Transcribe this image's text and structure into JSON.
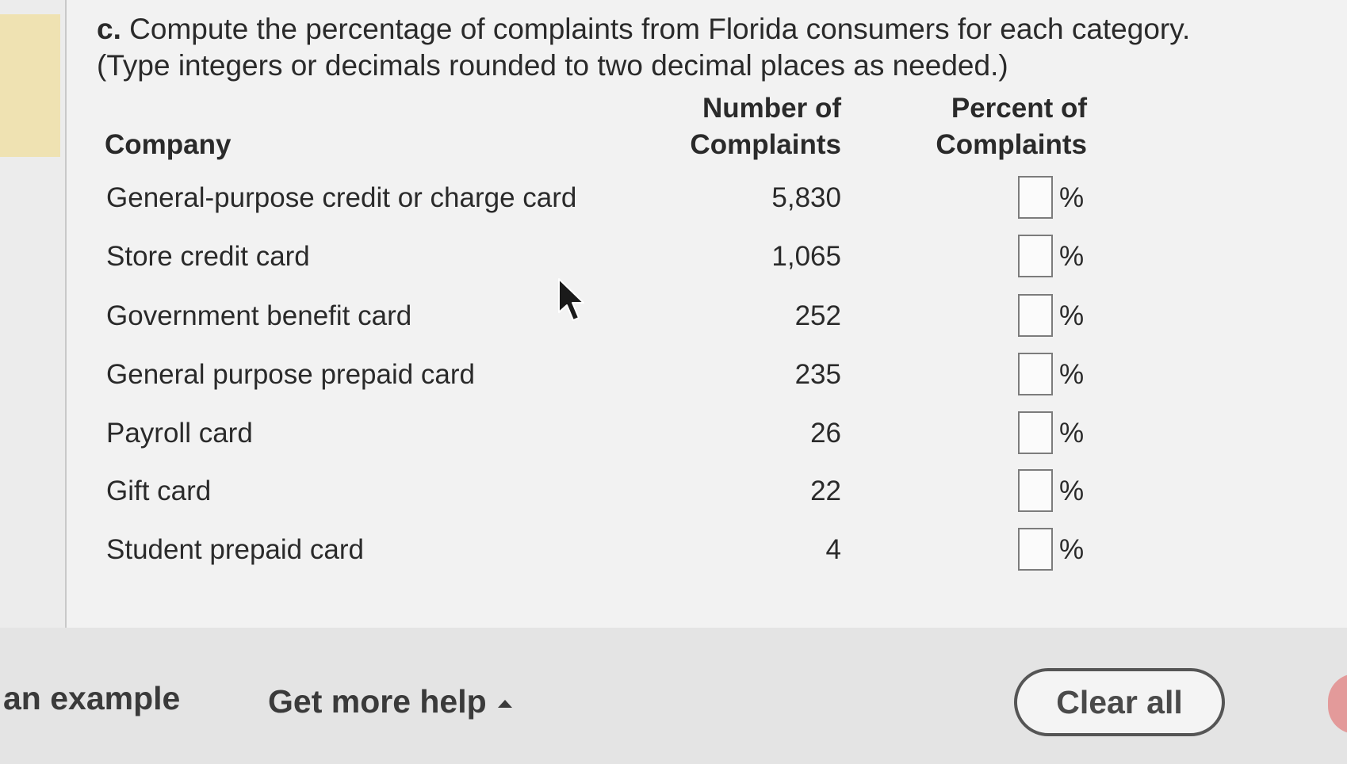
{
  "question": {
    "label": "c.",
    "line1": "Compute the percentage of complaints from Florida consumers for each category.",
    "line2": "(Type integers or decimals rounded to two decimal places as needed.)"
  },
  "table": {
    "headers": {
      "company": "Company",
      "number_line1": "Number of",
      "number_line2": "Complaints",
      "percent_line1": "Percent of",
      "percent_line2": "Complaints"
    },
    "percent_suffix": "%",
    "rows": [
      {
        "category": "General-purpose credit or charge card",
        "complaints": "5,830",
        "percent": ""
      },
      {
        "category": "Store credit card",
        "complaints": "1,065",
        "percent": ""
      },
      {
        "category": "Government benefit card",
        "complaints": "252",
        "percent": ""
      },
      {
        "category": "General purpose prepaid card",
        "complaints": "235",
        "percent": ""
      },
      {
        "category": "Payroll card",
        "complaints": "26",
        "percent": ""
      },
      {
        "category": "Gift card",
        "complaints": "22",
        "percent": ""
      },
      {
        "category": "Student prepaid card",
        "complaints": "4",
        "percent": ""
      }
    ]
  },
  "footer": {
    "example_label": "an example",
    "help_label": "Get more help",
    "clear_label": "Clear all"
  },
  "colors": {
    "accent_strip": "#efe2b2",
    "next_button": "#e39a9a"
  },
  "icons": {
    "cursor": "mouse-pointer-icon",
    "help_caret": "caret-up-icon"
  }
}
